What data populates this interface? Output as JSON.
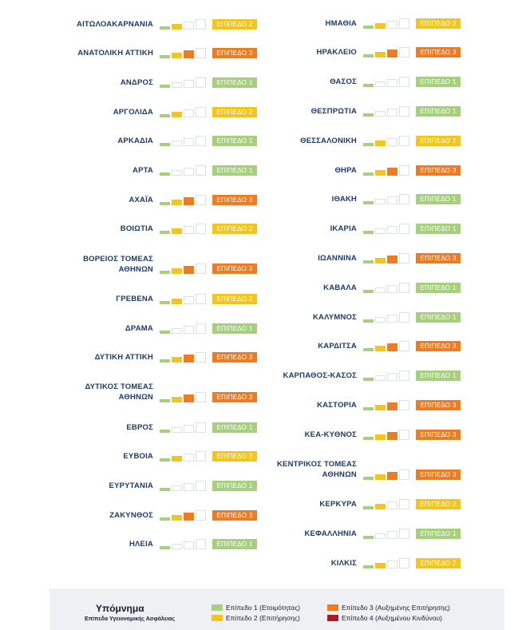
{
  "regions": {
    "columns": [
      [
        {
          "name": [
            "ΑΙΤΩΛΟΑΚΑΡΝΑΝΙΑ"
          ],
          "level": 2,
          "badge": "ΕΠΙΠΕΔΟ 2"
        },
        {
          "name": [
            "ΑΝΑΤΟΛΙΚΗ ΑΤΤΙΚΗ"
          ],
          "level": 3,
          "badge": "ΕΠΙΠΕΔΟ 3"
        },
        {
          "name": [
            "ΑΝΔΡΟΣ"
          ],
          "level": 1,
          "badge": "ΕΠΙΠΕΔΟ 1"
        },
        {
          "name": [
            "ΑΡΓΟΛΙΔΑ"
          ],
          "level": 2,
          "badge": "ΕΠΙΠΕΔΟ 2"
        },
        {
          "name": [
            "ΑΡΚΑΔΙΑ"
          ],
          "level": 1,
          "badge": "ΕΠΙΠΕΔΟ 1"
        },
        {
          "name": [
            "ΑΡΤΑ"
          ],
          "level": 1,
          "badge": "ΕΠΙΠΕΔΟ 1"
        },
        {
          "name": [
            "ΑΧΑΪΑ"
          ],
          "level": 3,
          "badge": "ΕΠΙΠΕΔΟ 3"
        },
        {
          "name": [
            "ΒΟΙΩΤΙΑ"
          ],
          "level": 2,
          "badge": "ΕΠΙΠΕΔΟ 2"
        },
        {
          "name": [
            "ΒΟΡΕΙΟΣ ΤΟΜΕΑΣ",
            "ΑΘΗΝΩΝ"
          ],
          "level": 3,
          "badge": "ΕΠΙΠΕΔΟ 3"
        },
        {
          "name": [
            "ΓΡΕΒΕΝΑ"
          ],
          "level": 2,
          "badge": "ΕΠΙΠΕΔΟ 2"
        },
        {
          "name": [
            "ΔΡΑΜΑ"
          ],
          "level": 1,
          "badge": "ΕΠΙΠΕΔΟ 1"
        },
        {
          "name": [
            "ΔΥΤΙΚΗ ΑΤΤΙΚΗ"
          ],
          "level": 3,
          "badge": "ΕΠΙΠΕΔΟ 3"
        },
        {
          "name": [
            "ΔΥΤΙΚΟΣ ΤΟΜΕΑΣ",
            "ΑΘΗΝΩΝ"
          ],
          "level": 3,
          "badge": "ΕΠΙΠΕΔΟ 3"
        },
        {
          "name": [
            "ΕΒΡΟΣ"
          ],
          "level": 1,
          "badge": "ΕΠΙΠΕΔΟ 1"
        },
        {
          "name": [
            "ΕΥΒΟΙΑ"
          ],
          "level": 2,
          "badge": "ΕΠΙΠΕΔΟ 2"
        },
        {
          "name": [
            "ΕΥΡΥΤΑΝΙΑ"
          ],
          "level": 1,
          "badge": "ΕΠΙΠΕΔΟ 1"
        },
        {
          "name": [
            "ΖΑΚΥΝΘΟΣ"
          ],
          "level": 3,
          "badge": "ΕΠΙΠΕΔΟ 3"
        },
        {
          "name": [
            "ΗΛΕΙΑ"
          ],
          "level": 1,
          "badge": "ΕΠΙΠΕΔΟ 1"
        }
      ],
      [
        {
          "name": [
            "ΗΜΑΘΙΑ"
          ],
          "level": 2,
          "badge": "ΕΠΙΠΕΔΟ 2"
        },
        {
          "name": [
            "ΗΡΑΚΛΕΙΟ"
          ],
          "level": 3,
          "badge": "ΕΠΙΠΕΔΟ 3"
        },
        {
          "name": [
            "ΘΑΣΟΣ"
          ],
          "level": 1,
          "badge": "ΕΠΙΠΕΔΟ 1"
        },
        {
          "name": [
            "ΘΕΣΠΡΩΤΙΑ"
          ],
          "level": 1,
          "badge": "ΕΠΙΠΕΔΟ 1"
        },
        {
          "name": [
            "ΘΕΣΣΑΛΟΝΙΚΗ"
          ],
          "level": 2,
          "badge": "ΕΠΙΠΕΔΟ 2"
        },
        {
          "name": [
            "ΘΗΡΑ"
          ],
          "level": 3,
          "badge": "ΕΠΙΠΕΔΟ 3"
        },
        {
          "name": [
            "ΙΘΑΚΗ"
          ],
          "level": 1,
          "badge": "ΕΠΙΠΕΔΟ 1"
        },
        {
          "name": [
            "ΙΚΑΡΙΑ"
          ],
          "level": 1,
          "badge": "ΕΠΙΠΕΔΟ 1"
        },
        {
          "name": [
            "ΙΩΑΝΝΙΝΑ"
          ],
          "level": 3,
          "badge": "ΕΠΙΠΕΔΟ 3"
        },
        {
          "name": [
            "ΚΑΒΑΛΑ"
          ],
          "level": 1,
          "badge": "ΕΠΙΠΕΔΟ 1"
        },
        {
          "name": [
            "ΚΑΛΥΜΝΟΣ"
          ],
          "level": 1,
          "badge": "ΕΠΙΠΕΔΟ 1"
        },
        {
          "name": [
            "ΚΑΡΔΙΤΣΑ"
          ],
          "level": 3,
          "badge": "ΕΠΙΠΕΔΟ 3"
        },
        {
          "name": [
            "ΚΑΡΠΑΘΟΣ-ΚΑΣΟΣ"
          ],
          "level": 1,
          "badge": "ΕΠΙΠΕΔΟ 1"
        },
        {
          "name": [
            "ΚΑΣΤΟΡΙΑ"
          ],
          "level": 3,
          "badge": "ΕΠΙΠΕΔΟ 3"
        },
        {
          "name": [
            "ΚΕΑ-ΚΥΘΝΟΣ"
          ],
          "level": 3,
          "badge": "ΕΠΙΠΕΔΟ 3"
        },
        {
          "name": [
            "ΚΕΝΤΡΙΚΟΣ ΤΟΜΕΑΣ",
            "ΑΘΗΝΩΝ"
          ],
          "level": 3,
          "badge": "ΕΠΙΠΕΔΟ 3"
        },
        {
          "name": [
            "ΚΕΡΚΥΡΑ"
          ],
          "level": 2,
          "badge": "ΕΠΙΠΕΔΟ 2"
        },
        {
          "name": [
            "ΚΕΦΑΛΛΗΝΙΑ"
          ],
          "level": 1,
          "badge": "ΕΠΙΠΕΔΟ 1"
        },
        {
          "name": [
            "ΚΙΛΚΙΣ"
          ],
          "level": 2,
          "badge": "ΕΠΙΠΕΔΟ 2"
        }
      ]
    ]
  },
  "legend": {
    "title": "Υπόμνημα",
    "subtitle": "Επίπεδα Υγειονομικής Ασφάλειας",
    "items": [
      {
        "label": "Επίπεδο 1 (Ετοιμότητας)",
        "color": "#a6d07e"
      },
      {
        "label": "Επίπεδο 2 (Επιτήρησης)",
        "color": "#f4c51c"
      },
      {
        "label": "Επίπεδο 3 (Αυξημένης Επιτήρησης)",
        "color": "#ef7b22"
      },
      {
        "label": "Επίπεδο 4 (Αυξημένου Κινδύνου)",
        "color": "#a8192b"
      }
    ]
  }
}
